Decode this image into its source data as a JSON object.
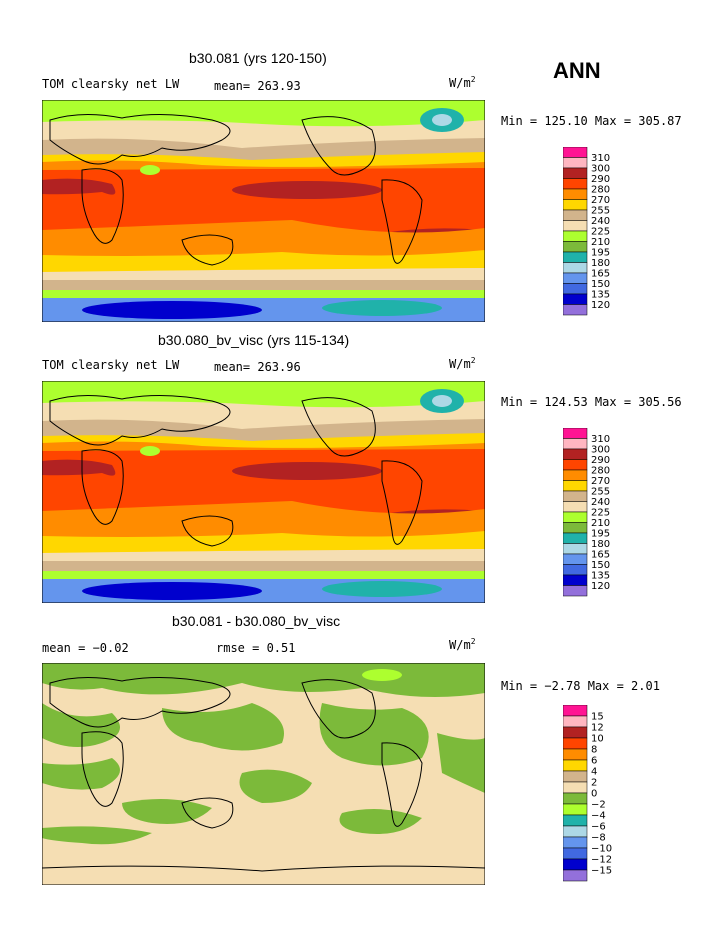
{
  "season": "ANN",
  "panels": [
    {
      "title": "b30.081 (yrs 120-150)",
      "left_label": "TOM clearsky net LW",
      "mid_label": "mean= 263.93",
      "units": "W/m",
      "units_sup": "2",
      "minmax": "Min = 125.10 Max = 305.87",
      "colorbar": {
        "labels": [
          "310",
          "300",
          "290",
          "280",
          "270",
          "255",
          "240",
          "225",
          "210",
          "195",
          "180",
          "165",
          "150",
          "135",
          "120"
        ],
        "colors": [
          "#ff1493",
          "#ffb6c1",
          "#b22222",
          "#ff4500",
          "#ff8c00",
          "#ffd700",
          "#d2b48c",
          "#f5deb3",
          "#adff2f",
          "#7cba3a",
          "#20b2aa",
          "#add8e6",
          "#6495ed",
          "#4169e1",
          "#0000cd",
          "#9370db"
        ]
      }
    },
    {
      "title": "b30.080_bv_visc (yrs 115-134)",
      "left_label": "TOM clearsky net LW",
      "mid_label": "mean= 263.96",
      "units": "W/m",
      "units_sup": "2",
      "minmax": "Min = 124.53 Max = 305.56",
      "colorbar": {
        "labels": [
          "310",
          "300",
          "290",
          "280",
          "270",
          "255",
          "240",
          "225",
          "210",
          "195",
          "180",
          "165",
          "150",
          "135",
          "120"
        ],
        "colors": [
          "#ff1493",
          "#ffb6c1",
          "#b22222",
          "#ff4500",
          "#ff8c00",
          "#ffd700",
          "#d2b48c",
          "#f5deb3",
          "#adff2f",
          "#7cba3a",
          "#20b2aa",
          "#add8e6",
          "#6495ed",
          "#4169e1",
          "#0000cd",
          "#9370db"
        ]
      }
    },
    {
      "title": "b30.081 - b30.080_bv_visc",
      "left_label": "mean =   −0.02",
      "mid_label": "rmse =    0.51",
      "units": "W/m",
      "units_sup": "2",
      "minmax": "Min =  −2.78 Max =   2.01",
      "colorbar": {
        "labels": [
          "15",
          "12",
          "10",
          "8",
          "6",
          "4",
          "2",
          "0",
          "−2",
          "−4",
          "−6",
          "−8",
          "−10",
          "−12",
          "−15"
        ],
        "colors": [
          "#ff1493",
          "#ffb6c1",
          "#b22222",
          "#ff4500",
          "#ff8c00",
          "#ffd700",
          "#d2b48c",
          "#f5deb3",
          "#7cba3a",
          "#adff2f",
          "#20b2aa",
          "#add8e6",
          "#6495ed",
          "#4169e1",
          "#0000cd",
          "#9370db"
        ]
      }
    }
  ]
}
